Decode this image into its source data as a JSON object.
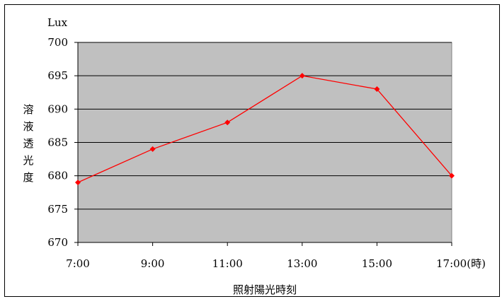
{
  "chart_data": {
    "type": "line",
    "title": "",
    "xlabel": "照射陽光時刻",
    "ylabel": "溶液透光度",
    "y_unit": "Lux",
    "categories": [
      "7:00",
      "9:00",
      "11:00",
      "13:00",
      "15:00",
      "17:00(時)"
    ],
    "series": [
      {
        "values": [
          679,
          684,
          688,
          695,
          693,
          680
        ]
      }
    ],
    "ylim": [
      670,
      700
    ],
    "yticks": [
      "670",
      "675",
      "680",
      "685",
      "690",
      "695",
      "700"
    ],
    "grid": "horizontal",
    "legend": "none",
    "colors": {
      "line": "#ff0000",
      "marker": "#ff0000",
      "plot_background": "#c0c0c0",
      "gridline": "#000000"
    }
  }
}
